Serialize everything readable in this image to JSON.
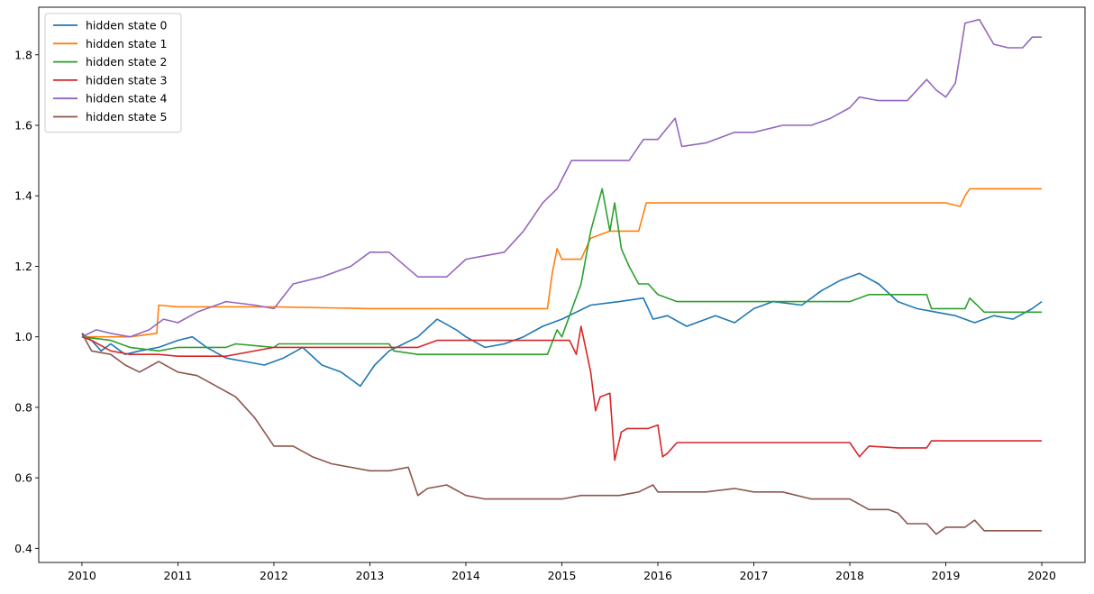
{
  "chart_data": {
    "type": "line",
    "title": "",
    "xlabel": "",
    "ylabel": "",
    "xlim": [
      2009.55,
      2020.45
    ],
    "ylim": [
      0.36,
      1.935
    ],
    "xticks": [
      "2010",
      "2011",
      "2012",
      "2013",
      "2014",
      "2015",
      "2016",
      "2017",
      "2018",
      "2019",
      "2020"
    ],
    "yticks": [
      "0.4",
      "0.6",
      "0.8",
      "1.0",
      "1.2",
      "1.4",
      "1.6",
      "1.8"
    ],
    "grid": false,
    "legend_position": "upper-left",
    "series": [
      {
        "name": "hidden state 0",
        "color": "#1f77b4",
        "x": [
          2010.0,
          2010.1,
          2010.2,
          2010.3,
          2010.45,
          2010.6,
          2010.8,
          2011.0,
          2011.15,
          2011.3,
          2011.5,
          2011.7,
          2011.9,
          2012.1,
          2012.3,
          2012.5,
          2012.7,
          2012.9,
          2013.05,
          2013.2,
          2013.35,
          2013.5,
          2013.7,
          2013.9,
          2014.0,
          2014.2,
          2014.4,
          2014.6,
          2014.8,
          2015.0,
          2015.3,
          2015.6,
          2015.85,
          2015.95,
          2016.1,
          2016.3,
          2016.6,
          2016.8,
          2017.0,
          2017.2,
          2017.5,
          2017.7,
          2017.9,
          2018.1,
          2018.3,
          2018.5,
          2018.7,
          2018.9,
          2019.1,
          2019.3,
          2019.5,
          2019.7,
          2019.9,
          2020.0
        ],
        "y": [
          1.01,
          0.99,
          0.96,
          0.98,
          0.95,
          0.96,
          0.97,
          0.99,
          1.0,
          0.97,
          0.94,
          0.93,
          0.92,
          0.94,
          0.97,
          0.92,
          0.9,
          0.86,
          0.92,
          0.96,
          0.98,
          1.0,
          1.05,
          1.02,
          1.0,
          0.97,
          0.98,
          1.0,
          1.03,
          1.05,
          1.09,
          1.1,
          1.11,
          1.05,
          1.06,
          1.03,
          1.06,
          1.04,
          1.08,
          1.1,
          1.09,
          1.13,
          1.16,
          1.18,
          1.15,
          1.1,
          1.08,
          1.07,
          1.06,
          1.04,
          1.06,
          1.05,
          1.08,
          1.1
        ]
      },
      {
        "name": "hidden state 1",
        "color": "#ff7f0e",
        "x": [
          2010.0,
          2010.5,
          2010.78,
          2010.8,
          2011.0,
          2012.0,
          2013.0,
          2014.0,
          2014.85,
          2014.9,
          2014.95,
          2015.0,
          2015.2,
          2015.3,
          2015.5,
          2015.8,
          2015.88,
          2016.0,
          2017.0,
          2018.0,
          2019.0,
          2019.15,
          2019.2,
          2019.25,
          2019.5,
          2020.0
        ],
        "y": [
          1.0,
          1.0,
          1.01,
          1.09,
          1.085,
          1.085,
          1.08,
          1.08,
          1.08,
          1.18,
          1.25,
          1.22,
          1.22,
          1.28,
          1.3,
          1.3,
          1.38,
          1.38,
          1.38,
          1.38,
          1.38,
          1.37,
          1.4,
          1.42,
          1.42,
          1.42
        ]
      },
      {
        "name": "hidden state 2",
        "color": "#2ca02c",
        "x": [
          2010.0,
          2010.3,
          2010.5,
          2010.8,
          2011.0,
          2011.5,
          2011.6,
          2012.0,
          2012.05,
          2012.5,
          2013.0,
          2013.2,
          2013.25,
          2013.5,
          2014.0,
          2014.5,
          2014.85,
          2014.95,
          2015.0,
          2015.2,
          2015.3,
          2015.42,
          2015.5,
          2015.55,
          2015.62,
          2015.7,
          2015.8,
          2015.9,
          2016.0,
          2016.2,
          2017.0,
          2018.0,
          2018.2,
          2018.8,
          2018.85,
          2019.0,
          2019.2,
          2019.25,
          2019.4,
          2020.0
        ],
        "y": [
          1.0,
          0.99,
          0.97,
          0.96,
          0.97,
          0.97,
          0.98,
          0.97,
          0.98,
          0.98,
          0.98,
          0.98,
          0.96,
          0.95,
          0.95,
          0.95,
          0.95,
          1.02,
          1.0,
          1.15,
          1.3,
          1.42,
          1.3,
          1.38,
          1.25,
          1.2,
          1.15,
          1.15,
          1.12,
          1.1,
          1.1,
          1.1,
          1.12,
          1.12,
          1.08,
          1.08,
          1.08,
          1.11,
          1.07,
          1.07
        ]
      },
      {
        "name": "hidden state 3",
        "color": "#d62728",
        "x": [
          2010.0,
          2010.1,
          2010.3,
          2010.5,
          2010.8,
          2011.0,
          2011.5,
          2012.0,
          2012.5,
          2013.0,
          2013.5,
          2013.7,
          2014.0,
          2014.5,
          2014.85,
          2015.0,
          2015.08,
          2015.15,
          2015.2,
          2015.3,
          2015.35,
          2015.4,
          2015.5,
          2015.55,
          2015.62,
          2015.68,
          2015.8,
          2015.9,
          2016.0,
          2016.05,
          2016.1,
          2016.2,
          2017.0,
          2018.0,
          2018.1,
          2018.2,
          2018.5,
          2018.8,
          2018.85,
          2019.0,
          2019.3,
          2019.5,
          2020.0
        ],
        "y": [
          1.0,
          0.99,
          0.96,
          0.95,
          0.95,
          0.945,
          0.945,
          0.97,
          0.97,
          0.97,
          0.97,
          0.99,
          0.99,
          0.99,
          0.99,
          0.99,
          0.99,
          0.95,
          1.03,
          0.9,
          0.79,
          0.83,
          0.84,
          0.65,
          0.73,
          0.74,
          0.74,
          0.74,
          0.75,
          0.66,
          0.67,
          0.7,
          0.7,
          0.7,
          0.66,
          0.69,
          0.685,
          0.685,
          0.705,
          0.705,
          0.705,
          0.705,
          0.705
        ]
      },
      {
        "name": "hidden state 4",
        "color": "#9467bd",
        "x": [
          2010.0,
          2010.15,
          2010.3,
          2010.5,
          2010.7,
          2010.85,
          2011.0,
          2011.2,
          2011.5,
          2011.8,
          2012.0,
          2012.2,
          2012.5,
          2012.8,
          2013.0,
          2013.2,
          2013.5,
          2013.8,
          2014.0,
          2014.2,
          2014.4,
          2014.6,
          2014.8,
          2014.95,
          2015.1,
          2015.3,
          2015.5,
          2015.7,
          2015.85,
          2016.0,
          2016.18,
          2016.25,
          2016.5,
          2016.8,
          2017.0,
          2017.3,
          2017.6,
          2017.8,
          2018.0,
          2018.1,
          2018.3,
          2018.6,
          2018.8,
          2018.9,
          2019.0,
          2019.1,
          2019.2,
          2019.35,
          2019.5,
          2019.65,
          2019.8,
          2019.9,
          2020.0
        ],
        "y": [
          1.0,
          1.02,
          1.01,
          1.0,
          1.02,
          1.05,
          1.04,
          1.07,
          1.1,
          1.09,
          1.08,
          1.15,
          1.17,
          1.2,
          1.24,
          1.24,
          1.17,
          1.17,
          1.22,
          1.23,
          1.24,
          1.3,
          1.38,
          1.42,
          1.5,
          1.5,
          1.5,
          1.5,
          1.56,
          1.56,
          1.62,
          1.54,
          1.55,
          1.58,
          1.58,
          1.6,
          1.6,
          1.62,
          1.65,
          1.68,
          1.67,
          1.67,
          1.73,
          1.7,
          1.68,
          1.72,
          1.89,
          1.9,
          1.83,
          1.82,
          1.82,
          1.85,
          1.85
        ]
      },
      {
        "name": "hidden state 5",
        "color": "#8c564b",
        "x": [
          2010.0,
          2010.1,
          2010.3,
          2010.45,
          2010.6,
          2010.8,
          2011.0,
          2011.2,
          2011.4,
          2011.6,
          2011.8,
          2012.0,
          2012.2,
          2012.4,
          2012.6,
          2012.8,
          2013.0,
          2013.2,
          2013.4,
          2013.5,
          2013.6,
          2013.8,
          2014.0,
          2014.2,
          2014.4,
          2014.6,
          2014.8,
          2015.0,
          2015.2,
          2015.4,
          2015.6,
          2015.8,
          2015.95,
          2016.0,
          2016.2,
          2016.5,
          2016.8,
          2017.0,
          2017.3,
          2017.6,
          2018.0,
          2018.2,
          2018.4,
          2018.5,
          2018.6,
          2018.8,
          2018.9,
          2019.0,
          2019.2,
          2019.3,
          2019.4,
          2019.6,
          2019.8,
          2020.0
        ],
        "y": [
          1.01,
          0.96,
          0.95,
          0.92,
          0.9,
          0.93,
          0.9,
          0.89,
          0.86,
          0.83,
          0.77,
          0.69,
          0.69,
          0.66,
          0.64,
          0.63,
          0.62,
          0.62,
          0.63,
          0.55,
          0.57,
          0.58,
          0.55,
          0.54,
          0.54,
          0.54,
          0.54,
          0.54,
          0.55,
          0.55,
          0.55,
          0.56,
          0.58,
          0.56,
          0.56,
          0.56,
          0.57,
          0.56,
          0.56,
          0.54,
          0.54,
          0.51,
          0.51,
          0.5,
          0.47,
          0.47,
          0.44,
          0.46,
          0.46,
          0.48,
          0.45,
          0.45,
          0.45,
          0.45
        ]
      }
    ]
  }
}
